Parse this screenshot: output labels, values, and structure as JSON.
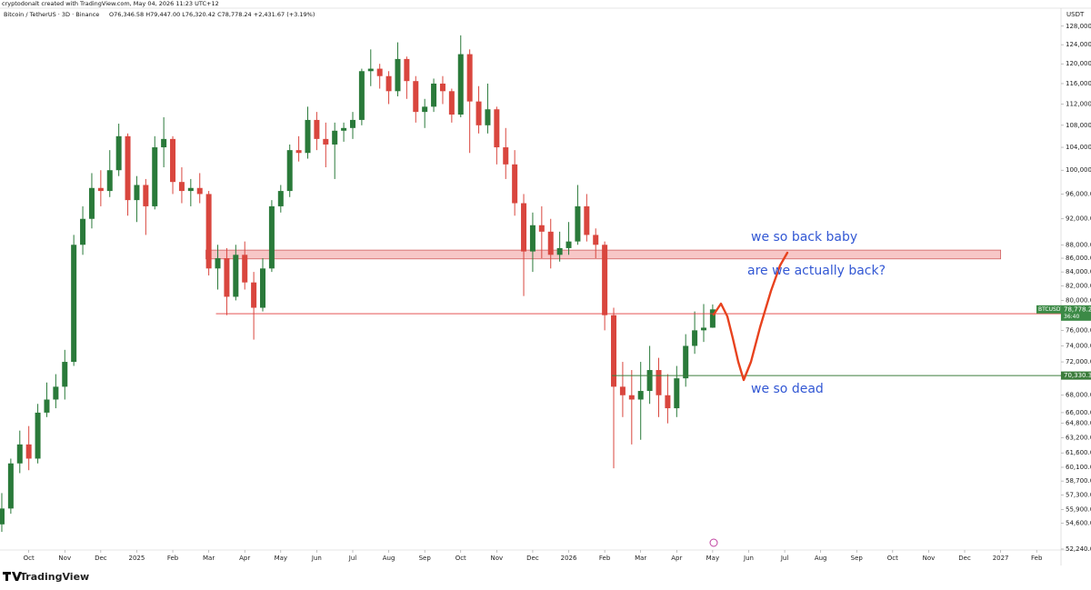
{
  "chart_data": {
    "type": "candlestick",
    "credit": "cryptodonalt created with TradingView.com, May 04, 2026 11:23 UTC+12",
    "title": "Bitcoin / TetherUS · 3D · Binance",
    "ohlc_text": "O76,346.58 H79,447.00 L76,320.42 C78,778.24 +2,431.67 (+3.19%)",
    "currency": "USDT",
    "branding": "TradingView",
    "log_scale": true,
    "grid": false,
    "up_color": "#2a7a3a",
    "down_color": "#d9463e",
    "x": [
      -3.75,
      -3.5,
      -3.25,
      -3,
      -2.75,
      -2.5,
      -2.25,
      -2,
      -1.75,
      -1.5,
      -1.25,
      -1,
      -0.75,
      -0.5,
      -0.25,
      0,
      0.25,
      0.5,
      0.75,
      1,
      1.25,
      1.5,
      1.75,
      2,
      2.25,
      2.5,
      2.75,
      3,
      3.25,
      3.5,
      3.75,
      4,
      4.25,
      4.5,
      4.75,
      5,
      5.25,
      5.5,
      5.75,
      6,
      6.25,
      6.5,
      6.75,
      7,
      7.25,
      7.5,
      7.75,
      8,
      8.25,
      8.5,
      8.75,
      9,
      9.25,
      9.5,
      9.75,
      10,
      10.25,
      10.5,
      10.75,
      11,
      11.25,
      11.5,
      11.75,
      12,
      12.25,
      12.5,
      12.75,
      13,
      13.25,
      13.5,
      13.75,
      14,
      14.25,
      14.5,
      14.75,
      15,
      15.25,
      15.5,
      15.75,
      16
    ],
    "open": [
      54500,
      56000,
      60500,
      62500,
      61000,
      66000,
      67500,
      69000,
      72000,
      88000,
      92000,
      97000,
      96500,
      100000,
      106000,
      95000,
      97500,
      94000,
      104000,
      105500,
      98000,
      96500,
      97000,
      96000,
      84500,
      86000,
      80500,
      86500,
      82500,
      79000,
      84500,
      94000,
      96500,
      103500,
      103000,
      109000,
      105500,
      104500,
      107000,
      107500,
      109000,
      118500,
      119000,
      117500,
      114500,
      121000,
      116500,
      110500,
      111500,
      116000,
      114500,
      110000,
      122000,
      112500,
      108000,
      111000,
      104000,
      101000,
      94500,
      87000,
      91000,
      90000,
      86500,
      87500,
      88500,
      94000,
      89500,
      88000,
      78000,
      69000,
      68000,
      67500,
      68500,
      71000,
      68000,
      66500,
      70000,
      74000,
      76000,
      76346.58
    ],
    "high": [
      57500,
      61000,
      64000,
      64500,
      67000,
      69500,
      70500,
      73500,
      89500,
      94000,
      99500,
      100000,
      103500,
      108300,
      106500,
      99000,
      98500,
      106000,
      109500,
      106000,
      100500,
      98500,
      99500,
      96500,
      88000,
      87500,
      88000,
      88500,
      84000,
      86000,
      95000,
      97500,
      104500,
      106000,
      111500,
      110500,
      108500,
      108500,
      108500,
      110500,
      119000,
      123000,
      120000,
      118500,
      124500,
      121500,
      117500,
      113000,
      117000,
      117500,
      115000,
      126000,
      123000,
      115500,
      116000,
      111500,
      107500,
      103500,
      96000,
      93000,
      94000,
      92000,
      90000,
      91500,
      97500,
      96000,
      90500,
      88500,
      79000,
      72000,
      71000,
      72000,
      74000,
      72500,
      70500,
      71500,
      75500,
      78500,
      79500,
      79447
    ],
    "low": [
      53800,
      55500,
      59500,
      59800,
      60500,
      65500,
      66500,
      67500,
      71500,
      86500,
      90500,
      94000,
      95500,
      99000,
      92500,
      91500,
      89500,
      93500,
      100500,
      96000,
      94500,
      94000,
      94500,
      83500,
      81500,
      78000,
      80000,
      81500,
      74800,
      78500,
      84000,
      93000,
      95500,
      101500,
      102000,
      103500,
      100500,
      98500,
      105000,
      105500,
      108000,
      115500,
      115000,
      112000,
      113500,
      113000,
      108500,
      107500,
      110500,
      112000,
      108500,
      109500,
      103000,
      106500,
      106500,
      101000,
      98500,
      92500,
      80600,
      84000,
      86000,
      84500,
      85500,
      86500,
      88000,
      88500,
      86000,
      76000,
      60000,
      65500,
      62500,
      63000,
      67000,
      65500,
      64800,
      65500,
      69000,
      73000,
      74500,
      76320.42
    ],
    "close": [
      56000,
      60500,
      62500,
      61000,
      66000,
      67500,
      69000,
      72000,
      88000,
      92000,
      97000,
      96500,
      100000,
      106000,
      95000,
      97500,
      94000,
      104000,
      105500,
      98000,
      96500,
      97000,
      96000,
      84500,
      86000,
      80500,
      86500,
      82500,
      79000,
      84500,
      94000,
      96500,
      103500,
      103000,
      109000,
      105500,
      104500,
      107000,
      107500,
      109000,
      118500,
      119000,
      117500,
      114500,
      121000,
      116500,
      110500,
      111500,
      116000,
      114500,
      110000,
      122000,
      112500,
      108000,
      111000,
      104000,
      101000,
      94500,
      87000,
      91000,
      90000,
      86500,
      87500,
      88500,
      94000,
      89500,
      88000,
      78000,
      69000,
      68000,
      67500,
      68500,
      71000,
      68000,
      66500,
      70000,
      74000,
      76000,
      76346.58,
      78778.24
    ],
    "xlim": [
      -3.8,
      25.5
    ],
    "xticks": [
      {
        "value": -3,
        "label": "Oct"
      },
      {
        "value": -2,
        "label": "Nov"
      },
      {
        "value": -1,
        "label": "Dec"
      },
      {
        "value": 0,
        "label": "2025"
      },
      {
        "value": 1,
        "label": "Feb"
      },
      {
        "value": 2,
        "label": "Mar"
      },
      {
        "value": 3,
        "label": "Apr"
      },
      {
        "value": 4,
        "label": "May"
      },
      {
        "value": 5,
        "label": "Jun"
      },
      {
        "value": 6,
        "label": "Jul"
      },
      {
        "value": 7,
        "label": "Aug"
      },
      {
        "value": 8,
        "label": "Sep"
      },
      {
        "value": 9,
        "label": "Oct"
      },
      {
        "value": 10,
        "label": "Nov"
      },
      {
        "value": 11,
        "label": "Dec"
      },
      {
        "value": 12,
        "label": "2026"
      },
      {
        "value": 13,
        "label": "Feb"
      },
      {
        "value": 14,
        "label": "Mar"
      },
      {
        "value": 15,
        "label": "Apr"
      },
      {
        "value": 16,
        "label": "May"
      },
      {
        "value": 17,
        "label": "Jun"
      },
      {
        "value": 18,
        "label": "Jul"
      },
      {
        "value": 19,
        "label": "Aug"
      },
      {
        "value": 20,
        "label": "Sep"
      },
      {
        "value": 21,
        "label": "Oct"
      },
      {
        "value": 22,
        "label": "Nov"
      },
      {
        "value": 23,
        "label": "Dec"
      },
      {
        "value": 24,
        "label": "2027"
      },
      {
        "value": 25,
        "label": "Feb"
      }
    ],
    "ylim": [
      51350,
      131800
    ],
    "yticks": [
      {
        "value": 128000,
        "label": "128,000.00"
      },
      {
        "value": 124000,
        "label": "124,000.00"
      },
      {
        "value": 120000,
        "label": "120,000.00"
      },
      {
        "value": 116000,
        "label": "116,000.00"
      },
      {
        "value": 112000,
        "label": "112,000.00"
      },
      {
        "value": 108000,
        "label": "108,000.00"
      },
      {
        "value": 104000,
        "label": "104,000.00"
      },
      {
        "value": 100000,
        "label": "100,000.00"
      },
      {
        "value": 96000,
        "label": "96,000.00"
      },
      {
        "value": 92000,
        "label": "92,000.00"
      },
      {
        "value": 88000,
        "label": "88,000.00"
      },
      {
        "value": 86000,
        "label": "86,000.00"
      },
      {
        "value": 84000,
        "label": "84,000.00"
      },
      {
        "value": 82000,
        "label": "82,000.00"
      },
      {
        "value": 80000,
        "label": "80,000.00"
      },
      {
        "value": 76000,
        "label": "76,000.00"
      },
      {
        "value": 74000,
        "label": "74,000.00"
      },
      {
        "value": 72000,
        "label": "72,000.00"
      },
      {
        "value": 68000,
        "label": "68,000.00"
      },
      {
        "value": 66000,
        "label": "66,000.00"
      },
      {
        "value": 64800,
        "label": "64,800.00"
      },
      {
        "value": 63200,
        "label": "63,200.00"
      },
      {
        "value": 61600,
        "label": "61,600.00"
      },
      {
        "value": 60100,
        "label": "60,100.00"
      },
      {
        "value": 58700,
        "label": "58,700.00"
      },
      {
        "value": 57300,
        "label": "57,300.00"
      },
      {
        "value": 55900,
        "label": "55,900.00"
      },
      {
        "value": 54600,
        "label": "54,600.00"
      },
      {
        "value": 52240,
        "label": "52,240.00"
      }
    ],
    "zone": {
      "x": [
        1.92,
        24.0
      ],
      "y": [
        85900,
        87200
      ],
      "color": "#f4b4b4"
    },
    "price_lines": [
      {
        "value": 78195.68,
        "label": "78,195.68",
        "x_start": 2.2,
        "color": "#e03b3b"
      },
      {
        "value": 70330.38,
        "label": "70,330.38",
        "x_start": 13.2,
        "color": "#3c7d3c"
      }
    ],
    "last_price": {
      "name": "BTCUSDT",
      "value": 78778.24,
      "label": "78,778.24",
      "countdown": "36:40",
      "color": "#3c8a46"
    },
    "annotations": [
      "we so back baby",
      "are we actually back?",
      "we so dead"
    ]
  }
}
